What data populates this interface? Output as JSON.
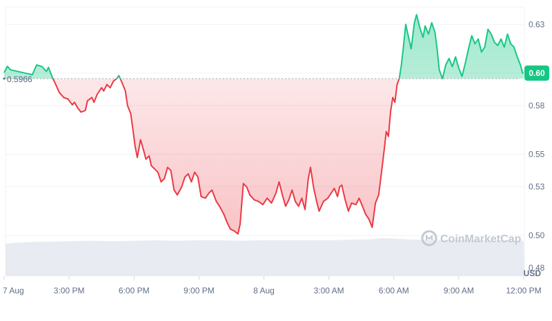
{
  "chart_data": {
    "type": "line",
    "currency_label": "USD",
    "baseline": {
      "value": 0.5966,
      "label": "0.5966"
    },
    "current_price": {
      "value": 0.6,
      "label": "0.60"
    },
    "watermark": "CoinMarketCap",
    "y_ticks": [
      {
        "value": 0.63,
        "label": "0.63"
      },
      {
        "value": 0.6,
        "label": "0.60"
      },
      {
        "value": 0.58,
        "label": "0.58"
      },
      {
        "value": 0.55,
        "label": "0.55"
      },
      {
        "value": 0.53,
        "label": "0.53"
      },
      {
        "value": 0.5,
        "label": "0.50"
      },
      {
        "value": 0.48,
        "label": "0.48"
      }
    ],
    "x_ticks": [
      {
        "t": 0,
        "label": "7 Aug"
      },
      {
        "t": 3,
        "label": "3:00 PM"
      },
      {
        "t": 6,
        "label": "6:00 PM"
      },
      {
        "t": 9,
        "label": "9:00 PM"
      },
      {
        "t": 12,
        "label": "8 Aug"
      },
      {
        "t": 15,
        "label": "3:00 AM"
      },
      {
        "t": 18,
        "label": "6:00 AM"
      },
      {
        "t": 21,
        "label": "9:00 AM"
      },
      {
        "t": 24,
        "label": "12:00 PM"
      }
    ],
    "ylim": [
      0.475,
      0.645
    ],
    "xlim": [
      0,
      24
    ],
    "colors": {
      "up": "#16c784",
      "down": "#ea3943",
      "grid": "#eff2f5",
      "volume": "#e6e9ef",
      "text": "#616e85"
    },
    "price": [
      [
        0.0,
        0.6003
      ],
      [
        0.15,
        0.6042
      ],
      [
        0.3,
        0.602
      ],
      [
        1.3,
        0.599
      ],
      [
        1.5,
        0.605
      ],
      [
        1.75,
        0.604
      ],
      [
        1.95,
        0.601
      ],
      [
        2.05,
        0.6035
      ],
      [
        2.25,
        0.5966
      ],
      [
        2.35,
        0.594
      ],
      [
        2.55,
        0.588
      ],
      [
        2.75,
        0.585
      ],
      [
        2.95,
        0.584
      ],
      [
        3.15,
        0.5805
      ],
      [
        3.25,
        0.582
      ],
      [
        3.4,
        0.5785
      ],
      [
        3.55,
        0.576
      ],
      [
        3.75,
        0.577
      ],
      [
        3.85,
        0.583
      ],
      [
        4.05,
        0.585
      ],
      [
        4.15,
        0.582
      ],
      [
        4.3,
        0.587
      ],
      [
        4.5,
        0.591
      ],
      [
        4.6,
        0.589
      ],
      [
        4.75,
        0.593
      ],
      [
        4.9,
        0.591
      ],
      [
        5.05,
        0.595
      ],
      [
        5.2,
        0.5966
      ],
      [
        5.3,
        0.5985
      ],
      [
        5.45,
        0.594
      ],
      [
        5.6,
        0.589
      ],
      [
        5.7,
        0.58
      ],
      [
        5.85,
        0.575
      ],
      [
        5.95,
        0.565
      ],
      [
        6.05,
        0.555
      ],
      [
        6.15,
        0.548
      ],
      [
        6.3,
        0.559
      ],
      [
        6.45,
        0.552
      ],
      [
        6.55,
        0.547
      ],
      [
        6.7,
        0.549
      ],
      [
        6.8,
        0.543
      ],
      [
        6.95,
        0.541
      ],
      [
        7.1,
        0.539
      ],
      [
        7.25,
        0.533
      ],
      [
        7.4,
        0.535
      ],
      [
        7.55,
        0.542
      ],
      [
        7.7,
        0.54
      ],
      [
        7.85,
        0.528
      ],
      [
        8.0,
        0.525
      ],
      [
        8.2,
        0.53
      ],
      [
        8.35,
        0.536
      ],
      [
        8.5,
        0.538
      ],
      [
        8.65,
        0.533
      ],
      [
        8.8,
        0.539
      ],
      [
        8.95,
        0.536
      ],
      [
        9.1,
        0.524
      ],
      [
        9.3,
        0.523
      ],
      [
        9.45,
        0.526
      ],
      [
        9.6,
        0.528
      ],
      [
        9.8,
        0.521
      ],
      [
        9.95,
        0.518
      ],
      [
        10.15,
        0.513
      ],
      [
        10.3,
        0.508
      ],
      [
        10.45,
        0.504
      ],
      [
        10.6,
        0.503
      ],
      [
        10.8,
        0.501
      ],
      [
        10.9,
        0.507
      ],
      [
        11.05,
        0.532
      ],
      [
        11.2,
        0.53
      ],
      [
        11.35,
        0.525
      ],
      [
        11.55,
        0.522
      ],
      [
        11.75,
        0.521
      ],
      [
        11.95,
        0.519
      ],
      [
        12.15,
        0.523
      ],
      [
        12.35,
        0.52
      ],
      [
        12.55,
        0.526
      ],
      [
        12.7,
        0.533
      ],
      [
        12.85,
        0.525
      ],
      [
        13.0,
        0.518
      ],
      [
        13.15,
        0.522
      ],
      [
        13.3,
        0.528
      ],
      [
        13.45,
        0.521
      ],
      [
        13.6,
        0.518
      ],
      [
        13.75,
        0.523
      ],
      [
        13.9,
        0.516
      ],
      [
        14.05,
        0.535
      ],
      [
        14.15,
        0.542
      ],
      [
        14.3,
        0.529
      ],
      [
        14.45,
        0.52
      ],
      [
        14.55,
        0.515
      ],
      [
        14.75,
        0.521
      ],
      [
        14.95,
        0.523
      ],
      [
        15.1,
        0.526
      ],
      [
        15.25,
        0.529
      ],
      [
        15.4,
        0.524
      ],
      [
        15.5,
        0.53
      ],
      [
        15.6,
        0.531
      ],
      [
        15.75,
        0.522
      ],
      [
        15.9,
        0.515
      ],
      [
        16.05,
        0.52
      ],
      [
        16.25,
        0.519
      ],
      [
        16.4,
        0.523
      ],
      [
        16.55,
        0.518
      ],
      [
        16.7,
        0.513
      ],
      [
        16.85,
        0.51
      ],
      [
        17.0,
        0.505
      ],
      [
        17.15,
        0.52
      ],
      [
        17.3,
        0.525
      ],
      [
        17.45,
        0.541
      ],
      [
        17.55,
        0.552
      ],
      [
        17.65,
        0.564
      ],
      [
        17.75,
        0.561
      ],
      [
        17.85,
        0.576
      ],
      [
        17.95,
        0.585
      ],
      [
        18.05,
        0.582
      ],
      [
        18.15,
        0.593
      ],
      [
        18.25,
        0.5966
      ],
      [
        18.35,
        0.605
      ],
      [
        18.45,
        0.617
      ],
      [
        18.55,
        0.63
      ],
      [
        18.65,
        0.624
      ],
      [
        18.8,
        0.615
      ],
      [
        18.95,
        0.631
      ],
      [
        19.05,
        0.636
      ],
      [
        19.2,
        0.628
      ],
      [
        19.35,
        0.622
      ],
      [
        19.45,
        0.629
      ],
      [
        19.6,
        0.624
      ],
      [
        19.75,
        0.631
      ],
      [
        19.9,
        0.625
      ],
      [
        20.0,
        0.615
      ],
      [
        20.1,
        0.602
      ],
      [
        20.25,
        0.5966
      ],
      [
        20.4,
        0.605
      ],
      [
        20.55,
        0.609
      ],
      [
        20.7,
        0.604
      ],
      [
        20.85,
        0.61
      ],
      [
        21.0,
        0.603
      ],
      [
        21.15,
        0.598
      ],
      [
        21.3,
        0.606
      ],
      [
        21.45,
        0.615
      ],
      [
        21.6,
        0.623
      ],
      [
        21.75,
        0.618
      ],
      [
        21.9,
        0.621
      ],
      [
        22.05,
        0.613
      ],
      [
        22.2,
        0.616
      ],
      [
        22.35,
        0.627
      ],
      [
        22.5,
        0.624
      ],
      [
        22.65,
        0.619
      ],
      [
        22.8,
        0.617
      ],
      [
        22.95,
        0.621
      ],
      [
        23.1,
        0.616
      ],
      [
        23.25,
        0.624
      ],
      [
        23.4,
        0.618
      ],
      [
        23.55,
        0.616
      ],
      [
        23.7,
        0.61
      ],
      [
        23.85,
        0.605
      ],
      [
        23.95,
        0.6
      ],
      [
        24.0,
        0.6
      ]
    ],
    "volume": [
      [
        0.0,
        0.62
      ],
      [
        0.5,
        0.64
      ],
      [
        1.0,
        0.65
      ],
      [
        1.5,
        0.66
      ],
      [
        2.0,
        0.66
      ],
      [
        3.0,
        0.67
      ],
      [
        4.0,
        0.68
      ],
      [
        5.0,
        0.67
      ],
      [
        6.0,
        0.68
      ],
      [
        7.0,
        0.69
      ],
      [
        8.0,
        0.68
      ],
      [
        9.0,
        0.69
      ],
      [
        10.0,
        0.69
      ],
      [
        11.0,
        0.68
      ],
      [
        12.0,
        0.69
      ],
      [
        13.0,
        0.69
      ],
      [
        14.0,
        0.69
      ],
      [
        15.0,
        0.69
      ],
      [
        16.0,
        0.7
      ],
      [
        17.0,
        0.71
      ],
      [
        17.5,
        0.73
      ],
      [
        18.0,
        0.72
      ],
      [
        19.0,
        0.7
      ],
      [
        20.0,
        0.69
      ],
      [
        21.0,
        0.7
      ],
      [
        22.0,
        0.69
      ],
      [
        23.0,
        0.69
      ],
      [
        24.0,
        0.68
      ]
    ]
  }
}
